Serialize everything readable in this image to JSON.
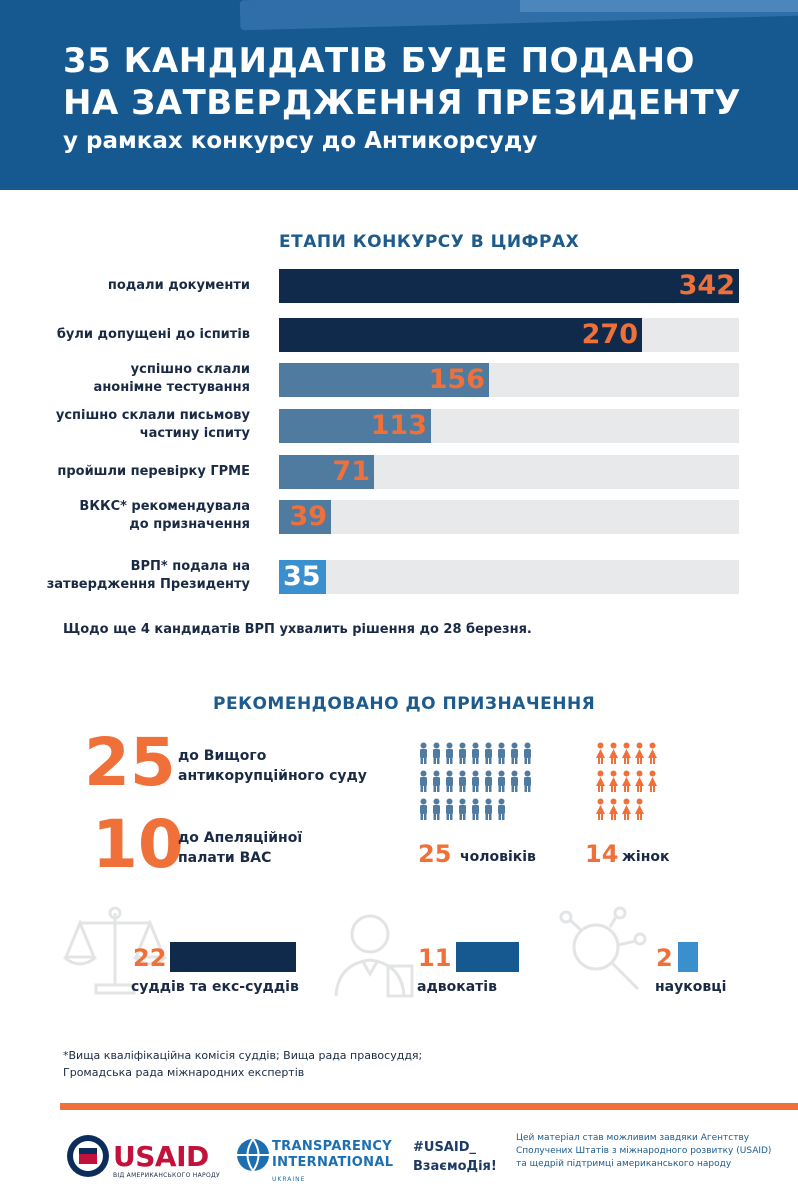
{
  "header": {
    "title_line1": "35 КАНДИДАТІВ БУДЕ ПОДАНО",
    "title_line2": "НА ЗАТВЕРДЖЕННЯ ПРЕЗИДЕНТУ",
    "subtitle": "у рамках конкурсу до Антикорсуду"
  },
  "stages": {
    "title": "ЕТАПИ КОНКУРСУ В ЦИФРАХ",
    "max": 342,
    "items": [
      {
        "label_line1": "подали документи",
        "label_line2": "",
        "value": "342",
        "color": "#0f2a4a"
      },
      {
        "label_line1": "були допущені до іспитів",
        "label_line2": "",
        "value": "270",
        "color": "#0f2a4a"
      },
      {
        "label_line1": "успішно склали",
        "label_line2": "анонімне тестування",
        "value": "156",
        "color": "#4f7ba0"
      },
      {
        "label_line1": "успішно склали письмову",
        "label_line2": "частину іспиту",
        "value": "113",
        "color": "#4f7ba0"
      },
      {
        "label_line1": "пройшли перевірку ГРМЕ",
        "label_line2": "",
        "value": "71",
        "color": "#4f7ba0"
      },
      {
        "label_line1": "ВККС* рекомендувала",
        "label_line2": "до призначення",
        "value": "39",
        "color": "#4f7ba0"
      },
      {
        "label_line1": "ВРП* подала на",
        "label_line2": "затвердження Президенту",
        "value": "35",
        "color": "#3a8fcf"
      }
    ],
    "note": "Щодо ще 4 кандидатів ВРП ухвалить рішення до 28 березня."
  },
  "recommended": {
    "title": "РЕКОМЕНДОВАНО ДО ПРИЗНАЧЕННЯ",
    "court1": {
      "num": "25",
      "desc_line1": "до Вищого",
      "desc_line2": "антикорупційного суду"
    },
    "court2": {
      "num": "10",
      "desc_line1": "до Апеляційної",
      "desc_line2": "палати ВАС"
    },
    "men": {
      "num": "25",
      "label": "чоловіків",
      "count": 25,
      "color": "#4f7ba0",
      "icon": "male-person-icon"
    },
    "women": {
      "num": "14",
      "label": "жінок",
      "count": 14,
      "color": "#f07039",
      "icon": "female-person-icon"
    }
  },
  "professions": {
    "max": 22,
    "judges": {
      "num": "22",
      "label": "суддів та екс-суддів",
      "color": "#0f2a4a",
      "icon": "scales-icon"
    },
    "lawyers": {
      "num": "11",
      "label": "адвокатів",
      "color": "#165890",
      "icon": "lawyer-icon"
    },
    "scientists": {
      "num": "2",
      "label": "науковці",
      "color": "#3a8fcf",
      "icon": "magnifier-icon"
    }
  },
  "footnote": {
    "line1": "*Вища кваліфікаційна комісія суддів; Вища рада правосуддя;",
    "line2": "Громадська рада міжнародних експертів"
  },
  "footer": {
    "usaid": "USAID",
    "usaid_sub": "ВІД АМЕРИКАНСЬКОГО НАРОДУ",
    "ti_line1": "TRANSPARENCY",
    "ti_line2": "INTERNATIONAL",
    "ti_line3": "UKRAINE",
    "hashtag_line1": "#USAID_",
    "hashtag_line2": "ВзаємоДія!",
    "credit": "Цей матеріал став можливим завдяки Агентству Сполучених Штатів з міжнародного розвитку (USAID) та щедрій підтримці американського народу"
  }
}
